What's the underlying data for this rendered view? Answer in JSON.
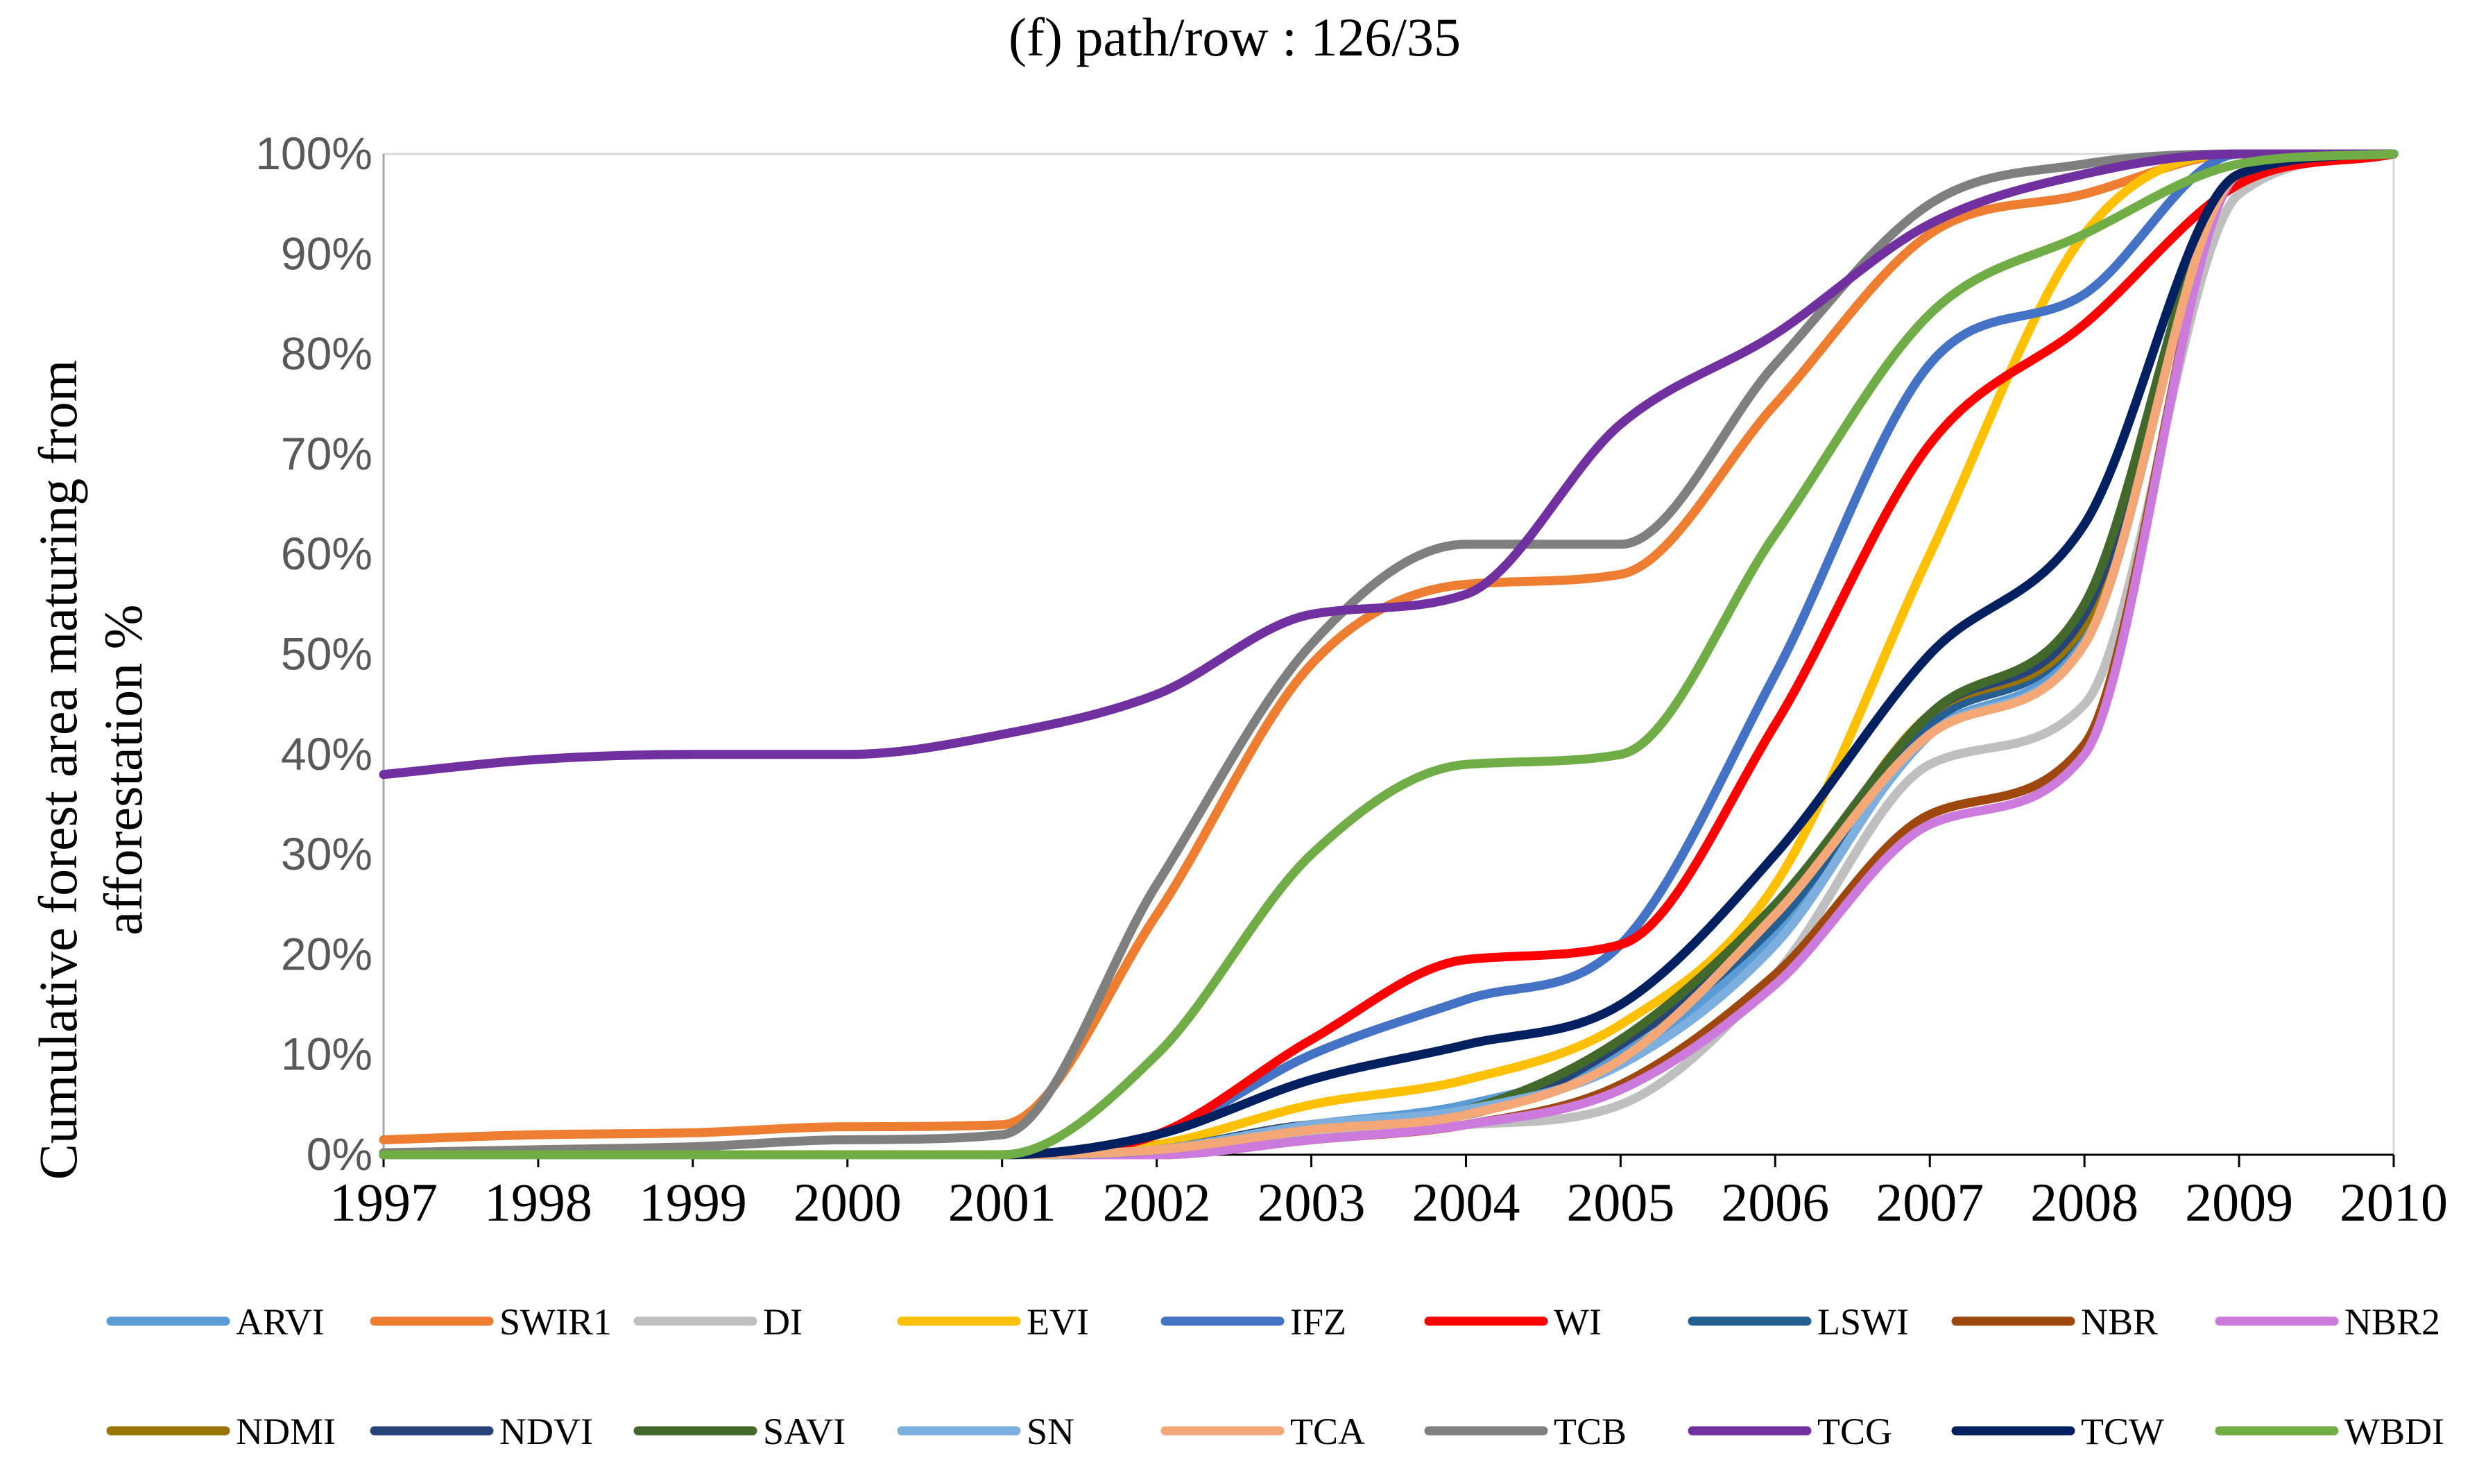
{
  "chart_data": {
    "type": "line",
    "title": "(f) path/row :  126/35",
    "xlabel": "",
    "ylabel_line1": "Cumulative forest area maturing from",
    "ylabel_line2": "afforestation %",
    "x": [
      1997,
      1998,
      1999,
      2000,
      2001,
      2002,
      2003,
      2004,
      2005,
      2006,
      2007,
      2008,
      2009,
      2010
    ],
    "xlim": [
      1997,
      2010
    ],
    "ylim": [
      0,
      100
    ],
    "y_ticks": [
      "0%",
      "10%",
      "20%",
      "30%",
      "40%",
      "50%",
      "60%",
      "70%",
      "80%",
      "90%",
      "100%"
    ],
    "x_ticks": [
      "1997",
      "1998",
      "1999",
      "2000",
      "2001",
      "2002",
      "2003",
      "2004",
      "2005",
      "2006",
      "2007",
      "2008",
      "2009",
      "2010"
    ],
    "legend_position": "bottom",
    "series": [
      {
        "name": "ARVI",
        "color": "#5B9BD5",
        "values": [
          0,
          0,
          0,
          0,
          0,
          0.5,
          3,
          5,
          10,
          22,
          42,
          52,
          98,
          100
        ]
      },
      {
        "name": "SWIR1",
        "color": "#ED7D31",
        "values": [
          1.5,
          2,
          2.2,
          2.8,
          3,
          24,
          49,
          57,
          58,
          75,
          92,
          96,
          100,
          100
        ]
      },
      {
        "name": "DI",
        "color": "#BFBFBF",
        "values": [
          0,
          0,
          0,
          0,
          0,
          0,
          2,
          3,
          5,
          18,
          39,
          45,
          96,
          100
        ]
      },
      {
        "name": "EVI",
        "color": "#FFC000",
        "values": [
          0,
          0,
          0,
          0,
          0,
          1,
          5,
          7.5,
          13,
          27,
          60,
          92,
          100,
          100
        ]
      },
      {
        "name": "IFZ",
        "color": "#4472C4",
        "values": [
          0,
          0,
          0,
          0,
          0,
          2,
          10,
          15.5,
          21,
          48,
          79,
          86,
          100,
          100
        ]
      },
      {
        "name": "WI",
        "color": "#FF0000",
        "values": [
          0,
          0,
          0,
          0,
          0,
          2,
          11.5,
          19.5,
          21,
          43,
          71,
          83,
          97,
          100
        ]
      },
      {
        "name": "LSWI",
        "color": "#255E91",
        "values": [
          0,
          0,
          0,
          0,
          0,
          0.5,
          3,
          4,
          11,
          23,
          43,
          53,
          98,
          100
        ]
      },
      {
        "name": "NBR",
        "color": "#9E480E",
        "values": [
          0,
          0,
          0,
          0,
          0,
          0,
          1.5,
          3,
          7,
          18,
          34,
          41,
          98,
          100
        ]
      },
      {
        "name": "NBR2",
        "color": "#CC7ADB",
        "values": [
          0,
          0,
          0,
          0,
          0,
          0,
          1.5,
          3,
          6.5,
          17,
          33,
          40,
          98,
          100
        ]
      },
      {
        "name": "NDMI",
        "color": "#997300",
        "values": [
          0,
          0,
          0,
          0,
          0,
          0.5,
          3,
          4,
          11,
          24,
          44,
          53,
          98,
          100
        ]
      },
      {
        "name": "NDVI",
        "color": "#264478",
        "values": [
          0,
          0,
          0,
          0,
          0,
          0.5,
          3,
          4,
          11,
          24,
          44,
          54,
          98,
          100
        ]
      },
      {
        "name": "SAVI",
        "color": "#43682B",
        "values": [
          0,
          0,
          0,
          0,
          0,
          0.5,
          3,
          4.5,
          11.5,
          25,
          44,
          55,
          98,
          100
        ]
      },
      {
        "name": "SN",
        "color": "#7CAFDD",
        "values": [
          0,
          0,
          0,
          0,
          0,
          0.5,
          3,
          4.5,
          9,
          21,
          42,
          51,
          98,
          100
        ]
      },
      {
        "name": "TCA",
        "color": "#F4A777",
        "values": [
          0,
          0,
          0,
          0,
          0,
          0.5,
          2.5,
          4,
          9.5,
          24,
          42,
          51,
          98,
          100
        ]
      },
      {
        "name": "TCB",
        "color": "#7F7F7F",
        "values": [
          0.2,
          0.5,
          0.8,
          1.5,
          2,
          27,
          51,
          61,
          61,
          79,
          95,
          99,
          100,
          100
        ]
      },
      {
        "name": "TCG",
        "color": "#7030A0",
        "values": [
          38,
          39.5,
          40,
          40,
          42,
          46,
          54,
          56,
          73,
          82,
          93,
          98,
          100,
          100
        ]
      },
      {
        "name": "TCW",
        "color": "#002060",
        "values": [
          0,
          0,
          0,
          0,
          0,
          2,
          7.5,
          11,
          15,
          30,
          50,
          63,
          98,
          100
        ]
      },
      {
        "name": "WBDI",
        "color": "#70AD47",
        "values": [
          0,
          0,
          0,
          0,
          0,
          10,
          30,
          39,
          40,
          62,
          84,
          92,
          99,
          100
        ]
      }
    ]
  }
}
